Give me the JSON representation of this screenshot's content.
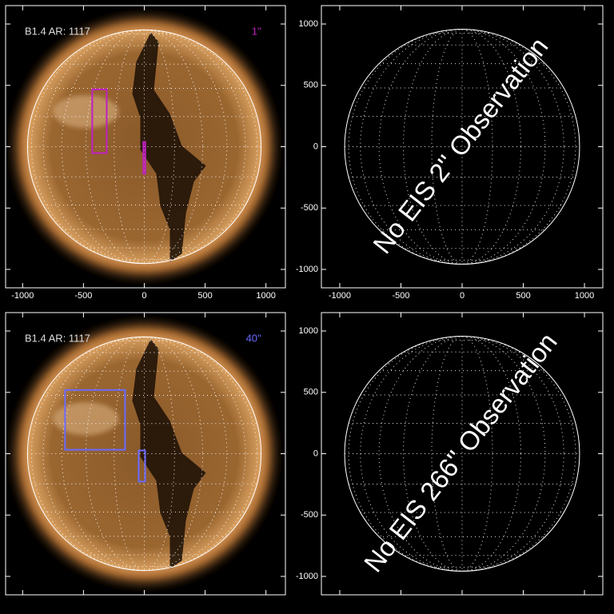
{
  "chart_data": [
    {
      "type": "image",
      "xlim": [
        -1140,
        1160
      ],
      "ylim": [
        -1150,
        1150
      ],
      "xticks": [
        -1000,
        -500,
        0,
        500,
        1000
      ],
      "yticks": [
        -1000,
        -500,
        0,
        500,
        1000
      ],
      "xtick_labels": true,
      "ytick_labels": false,
      "limb_radius": 960,
      "label": "B1.4 AR: 1117",
      "annotation": "1''",
      "annotation_color": "#c020c0",
      "boxes": [
        {
          "x": [
            -428,
            -309
          ],
          "y": [
            -52,
            467
          ],
          "color": "#c020c0"
        },
        {
          "x": [
            -8,
            8
          ],
          "y": [
            -221,
            39
          ],
          "color": "#c020c0"
        }
      ]
    },
    {
      "type": "disk",
      "xlim": [
        -1150,
        1150
      ],
      "ylim": [
        -1150,
        1150
      ],
      "xticks": [
        -1000,
        -500,
        0,
        500,
        1000
      ],
      "yticks": [
        -1000,
        -500,
        0,
        500,
        1000
      ],
      "xtick_labels": true,
      "ytick_labels": true,
      "limb_radius": 960,
      "annotation": "No EIS 2'' Observation"
    },
    {
      "type": "image",
      "xlim": [
        -1140,
        1160
      ],
      "ylim": [
        -1150,
        1150
      ],
      "xticks": [
        -1000,
        -500,
        0,
        500,
        1000
      ],
      "yticks": [
        -1000,
        -500,
        0,
        500,
        1000
      ],
      "xtick_labels": false,
      "ytick_labels": false,
      "limb_radius": 960,
      "label": "B1.4 AR: 1117",
      "annotation": "40''",
      "annotation_color": "#6a6aff",
      "boxes": [
        {
          "x": [
            -651,
            -158
          ],
          "y": [
            32,
            519
          ],
          "color": "#6a6aff"
        },
        {
          "x": [
            -46,
            7
          ],
          "y": [
            -227,
            26
          ],
          "color": "#6a6aff"
        }
      ]
    },
    {
      "type": "disk",
      "xlim": [
        -1150,
        1150
      ],
      "ylim": [
        -1150,
        1150
      ],
      "xticks": [
        -1000,
        -500,
        0,
        500,
        1000
      ],
      "yticks": [
        -1000,
        -500,
        0,
        500,
        1000
      ],
      "xtick_labels": false,
      "ytick_labels": true,
      "limb_radius": 960,
      "annotation": "No EIS 266'' Observation"
    }
  ]
}
